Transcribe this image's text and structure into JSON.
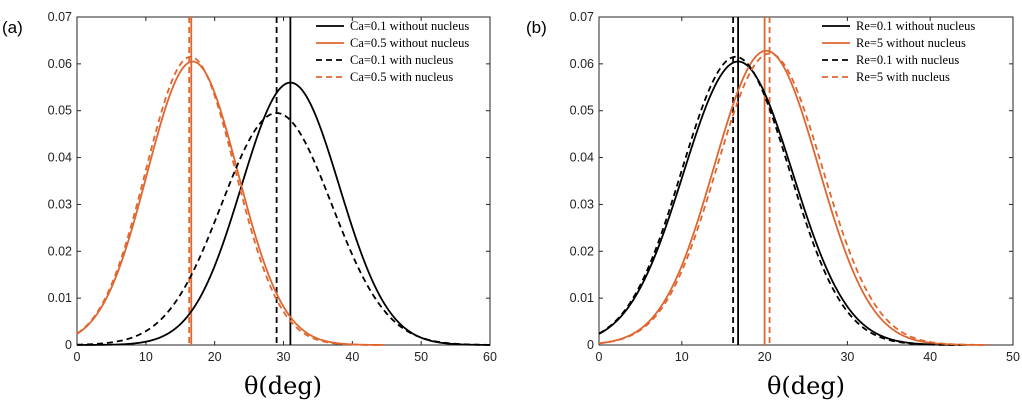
{
  "panels": [
    {
      "label": "(a)",
      "xlabel": "θ(deg)",
      "xlim": [
        0,
        60
      ],
      "ylim": [
        0,
        0.07
      ],
      "xticks": [
        "0",
        "10",
        "20",
        "30",
        "40",
        "50",
        "60"
      ],
      "yticks": [
        "0",
        "0.01",
        "0.02",
        "0.03",
        "0.04",
        "0.05",
        "0.06",
        "0.07"
      ],
      "legend": [
        {
          "text": "Ca=0.1 without nucleus",
          "color": "#000000",
          "dashed": false
        },
        {
          "text": "Ca=0.5 without nucleus",
          "color": "#e06630",
          "dashed": false
        },
        {
          "text": "Ca=0.1 with nucleus",
          "color": "#000000",
          "dashed": true
        },
        {
          "text": "Ca=0.5 with nucleus",
          "color": "#e06630",
          "dashed": true
        }
      ]
    },
    {
      "label": "(b)",
      "xlabel": "θ(deg)",
      "xlim": [
        0,
        50
      ],
      "ylim": [
        0,
        0.07
      ],
      "xticks": [
        "0",
        "10",
        "20",
        "30",
        "40",
        "50"
      ],
      "yticks": [
        "0",
        "0.01",
        "0.02",
        "0.03",
        "0.04",
        "0.05",
        "0.06",
        "0.07"
      ],
      "legend": [
        {
          "text": "Re=0.1 without nucleus",
          "color": "#000000",
          "dashed": false
        },
        {
          "text": "Re=5 without nucleus",
          "color": "#e06630",
          "dashed": false
        },
        {
          "text": "Re=0.1 with nucleus",
          "color": "#000000",
          "dashed": true
        },
        {
          "text": "Re=5 with nucleus",
          "color": "#e06630",
          "dashed": true
        }
      ]
    }
  ],
  "chart_data": [
    {
      "type": "line",
      "title": "",
      "xlabel": "θ(deg)",
      "ylabel": "",
      "xlim": [
        0,
        60
      ],
      "ylim": [
        0,
        0.07
      ],
      "grid": false,
      "legend_position": "top-right",
      "series": [
        {
          "name": "Ca=0.1 without nucleus",
          "color": "#000000",
          "dashed": false,
          "peak_x": 31,
          "peak_y": 0.056,
          "sigma": 7.1,
          "vline_x": 31
        },
        {
          "name": "Ca=0.5 without nucleus",
          "color": "#e06630",
          "dashed": false,
          "peak_x": 16.8,
          "peak_y": 0.0605,
          "sigma": 6.6,
          "vline_x": 16.6
        },
        {
          "name": "Ca=0.1 with nucleus",
          "color": "#000000",
          "dashed": true,
          "peak_x": 29,
          "peak_y": 0.0495,
          "sigma": 8.0,
          "vline_x": 29
        },
        {
          "name": "Ca=0.5 with nucleus",
          "color": "#e06630",
          "dashed": true,
          "peak_x": 16.5,
          "peak_y": 0.0615,
          "sigma": 6.5,
          "vline_x": 16.3
        }
      ]
    },
    {
      "type": "line",
      "title": "",
      "xlabel": "θ(deg)",
      "ylabel": "",
      "xlim": [
        0,
        50
      ],
      "ylim": [
        0,
        0.07
      ],
      "grid": false,
      "legend_position": "top-right",
      "series": [
        {
          "name": "Re=0.1 without nucleus",
          "color": "#000000",
          "dashed": false,
          "peak_x": 16.8,
          "peak_y": 0.0605,
          "sigma": 6.6,
          "vline_x": 16.8
        },
        {
          "name": "Re=5 without nucleus",
          "color": "#e06630",
          "dashed": false,
          "peak_x": 20.2,
          "peak_y": 0.0628,
          "sigma": 6.3,
          "vline_x": 20.0
        },
        {
          "name": "Re=0.1 with nucleus",
          "color": "#000000",
          "dashed": true,
          "peak_x": 16.5,
          "peak_y": 0.0615,
          "sigma": 6.5,
          "vline_x": 16.2
        },
        {
          "name": "Re=5 with nucleus",
          "color": "#e06630",
          "dashed": true,
          "peak_x": 20.6,
          "peak_y": 0.0622,
          "sigma": 6.4,
          "vline_x": 20.6
        }
      ]
    }
  ]
}
